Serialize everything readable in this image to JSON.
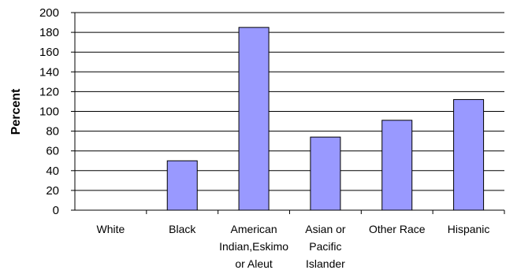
{
  "chart_data": {
    "type": "bar",
    "title": "",
    "xlabel": "",
    "ylabel": "Percent",
    "ylim": [
      0,
      200
    ],
    "yticks": [
      0,
      20,
      40,
      60,
      80,
      100,
      120,
      140,
      160,
      180,
      200
    ],
    "grid": true,
    "categories": [
      [
        "White"
      ],
      [
        "Black"
      ],
      [
        "American",
        "Indian,Eskimo",
        "or Aleut"
      ],
      [
        "Asian or",
        "Pacific",
        "Islander"
      ],
      [
        "Other Race"
      ],
      [
        "Hispanic"
      ]
    ],
    "values": [
      0,
      50,
      185,
      74,
      91,
      112
    ],
    "bar_color": "#9999ff"
  }
}
